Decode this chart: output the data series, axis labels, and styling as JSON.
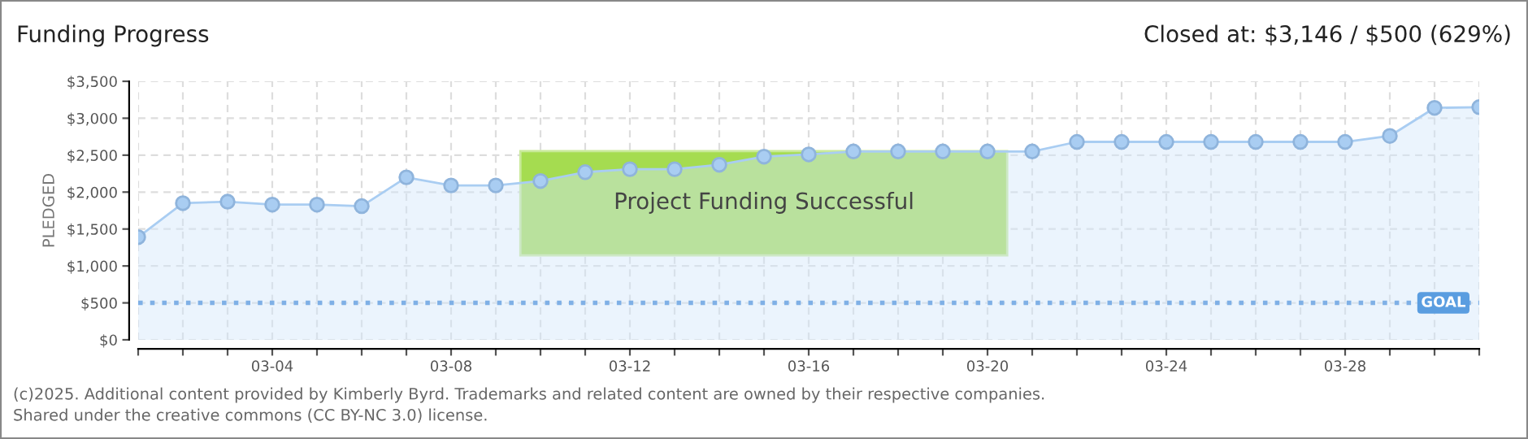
{
  "chart_data": {
    "type": "area",
    "title": "Funding Progress",
    "subtitle": "Closed at: $3,146 / $500 (629%)",
    "ylabel": "PLEDGED",
    "categories": [
      null,
      null,
      null,
      "03-04",
      null,
      null,
      null,
      "03-08",
      null,
      null,
      null,
      "03-12",
      null,
      null,
      null,
      "03-16",
      null,
      null,
      null,
      "03-20",
      null,
      null,
      null,
      "03-24",
      null,
      null,
      null,
      "03-28",
      null,
      null,
      null
    ],
    "series": [
      {
        "color": "#a9cdf2",
        "values": [
          1390,
          1850,
          1870,
          1830,
          1830,
          1810,
          2200,
          2090,
          2090,
          2150,
          2270,
          2310,
          2310,
          2370,
          2480,
          2510,
          2550,
          2550,
          2550,
          2550,
          2550,
          2680,
          2680,
          2680,
          2680,
          2680,
          2680,
          2680,
          2760,
          3140,
          3150
        ]
      }
    ],
    "ylim": [
      0,
      3500
    ],
    "yticks": [
      {
        "value": 0,
        "label": "$0"
      },
      {
        "value": 500,
        "label": "$500"
      },
      {
        "value": 1000,
        "label": "$1,000"
      },
      {
        "value": 1500,
        "label": "$1,500"
      },
      {
        "value": 2000,
        "label": "$2,000"
      },
      {
        "value": 2500,
        "label": "$2,500"
      },
      {
        "value": 3000,
        "label": "$3,000"
      },
      {
        "value": 3500,
        "label": "$3,500"
      }
    ],
    "grid": true,
    "marker": "circle",
    "ref_lines": [
      {
        "axis": "y",
        "value": 500,
        "label": "GOAL",
        "color": "#7fb0e6",
        "line_style": "dotted"
      }
    ],
    "annotations": [
      "Project Funding Successful",
      "(c)2025. Additional content provided by Kimberly Byrd. Trademarks and related content are owned by their respective companies.",
      "Shared under the creative commons (CC BY-NC 3.0) license."
    ]
  }
}
